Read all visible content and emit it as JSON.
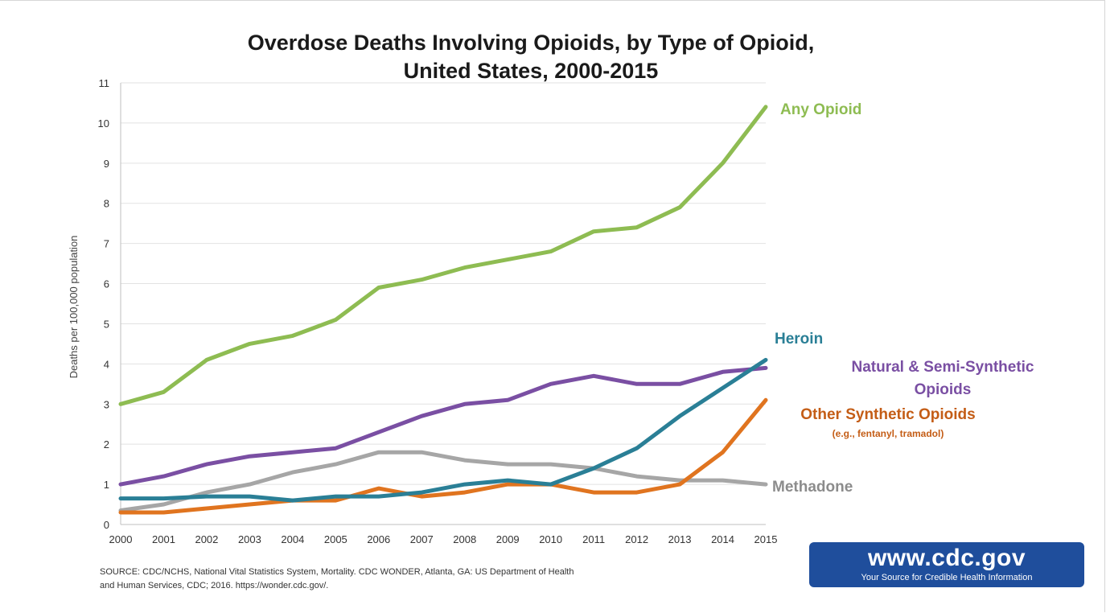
{
  "chart_data": {
    "type": "line",
    "title_lines": [
      "Overdose Deaths Involving Opioids, by Type of Opioid,",
      "United States, 2000-2015"
    ],
    "ylabel": "Deaths per 100,000 population",
    "xlabel": "",
    "ylim": [
      0,
      11
    ],
    "yticks": [
      "0",
      "1",
      "2",
      "3",
      "4",
      "5",
      "6",
      "7",
      "8",
      "9",
      "10",
      "11"
    ],
    "x": [
      "2000",
      "2001",
      "2002",
      "2003",
      "2004",
      "2005",
      "2006",
      "2007",
      "2008",
      "2009",
      "2010",
      "2011",
      "2012",
      "2013",
      "2014",
      "2015"
    ],
    "grid": "horizontal",
    "series": [
      {
        "name": "Any Opioid",
        "color": "#8ebc52",
        "values": [
          3.0,
          3.3,
          4.1,
          4.5,
          4.7,
          5.1,
          5.9,
          6.1,
          6.4,
          6.6,
          6.8,
          7.3,
          7.4,
          7.9,
          9.0,
          10.4
        ]
      },
      {
        "name": "Natural & Semi-Synthetic Opioids",
        "color": "#7a4fa3",
        "values": [
          1.0,
          1.2,
          1.5,
          1.7,
          1.8,
          1.9,
          2.3,
          2.7,
          3.0,
          3.1,
          3.5,
          3.7,
          3.5,
          3.5,
          3.8,
          3.9
        ]
      },
      {
        "name": "Methadone",
        "color": "#a6a6a6",
        "values": [
          0.35,
          0.5,
          0.8,
          1.0,
          1.3,
          1.5,
          1.8,
          1.8,
          1.6,
          1.5,
          1.5,
          1.4,
          1.2,
          1.1,
          1.1,
          1.0
        ]
      },
      {
        "name": "Other Synthetic Opioids",
        "color": "#e0741f",
        "values": [
          0.3,
          0.3,
          0.4,
          0.5,
          0.6,
          0.6,
          0.9,
          0.7,
          0.8,
          1.0,
          1.0,
          0.8,
          0.8,
          1.0,
          1.8,
          3.1
        ]
      },
      {
        "name": "Heroin",
        "color": "#2a7f96",
        "values": [
          0.65,
          0.65,
          0.7,
          0.7,
          0.6,
          0.7,
          0.7,
          0.8,
          1.0,
          1.1,
          1.0,
          1.4,
          1.9,
          2.7,
          3.4,
          4.1
        ]
      }
    ],
    "labels": [
      {
        "key": "any",
        "text": "Any Opioid",
        "color": "#8ebc52"
      },
      {
        "key": "heroin",
        "text": "Heroin",
        "color": "#2a7f96"
      },
      {
        "key": "natural1",
        "text": "Natural & Semi-Synthetic",
        "color": "#7a4fa3"
      },
      {
        "key": "natural2",
        "text": "Opioids",
        "color": "#7a4fa3"
      },
      {
        "key": "other",
        "text": "Other Synthetic Opioids",
        "color": "#c45d16"
      },
      {
        "key": "other_sub",
        "text": "(e.g., fentanyl, tramadol)",
        "color": "#c45d16"
      },
      {
        "key": "methadone",
        "text": "Methadone",
        "color": "#8c8c8c"
      }
    ]
  },
  "source": {
    "line1": "SOURCE: CDC/NCHS, National Vital Statistics System, Mortality. CDC WONDER, Atlanta, GA: US Department of Health",
    "line2": "and Human Services, CDC; 2016. https://wonder.cdc.gov/."
  },
  "badge": {
    "url": "www.cdc.gov",
    "tagline": "Your Source for Credible Health Information",
    "color": "#1f4e9c"
  }
}
